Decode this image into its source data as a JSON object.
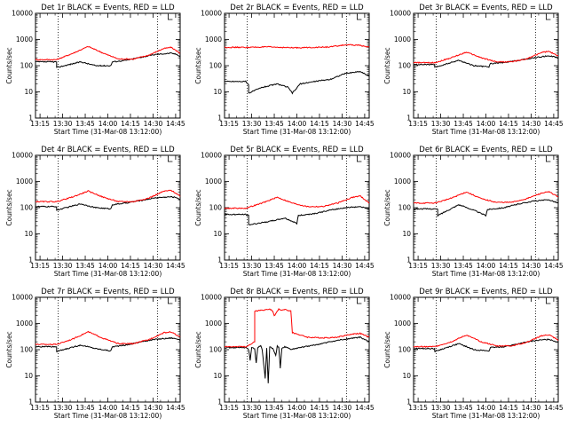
{
  "chart_data": [
    {
      "type": "line",
      "title": "Det 1r BLACK = Events, RED = LLD",
      "xlabel": "Start Time (31-Mar-08 13:12:00)",
      "ylabel": "Counts/sec",
      "x_ticks": [
        "13:15",
        "13:30",
        "13:45",
        "14:00",
        "14:15",
        "14:30",
        "14:45"
      ],
      "y_ticks": [
        "1",
        "10",
        "100",
        "1000",
        "10000"
      ],
      "xlim_minutes": [
        0,
        96
      ],
      "ylim": [
        1,
        10000
      ],
      "yscale": "log",
      "dotted_x_minutes": [
        15,
        81
      ],
      "series": [
        {
          "name": "Events",
          "color": "#000000",
          "x": [
            0,
            14,
            14,
            30,
            40,
            50,
            51,
            60,
            70,
            80,
            90,
            94,
            96
          ],
          "values": [
            140,
            140,
            85,
            140,
            100,
            100,
            140,
            160,
            210,
            270,
            300,
            270,
            220
          ]
        },
        {
          "name": "LLD",
          "color": "#ff0000",
          "x": [
            0,
            14,
            25,
            35,
            45,
            55,
            65,
            75,
            85,
            90,
            96
          ],
          "values": [
            170,
            170,
            300,
            540,
            300,
            180,
            180,
            250,
            450,
            500,
            300
          ]
        }
      ]
    },
    {
      "type": "line",
      "title": "Det 2r BLACK = Events, RED = LLD",
      "xlabel": "Start Time (31-Mar-08 13:12:00)",
      "ylabel": "Counts/sec",
      "x_ticks": [
        "13:15",
        "13:30",
        "13:45",
        "14:00",
        "14:15",
        "14:30",
        "14:45"
      ],
      "y_ticks": [
        "1",
        "10",
        "100",
        "1000",
        "10000"
      ],
      "xlim_minutes": [
        0,
        96
      ],
      "ylim": [
        1,
        10000
      ],
      "yscale": "log",
      "dotted_x_minutes": [
        15,
        81
      ],
      "series": [
        {
          "name": "Events",
          "color": "#000000",
          "x": [
            0,
            14,
            16,
            16,
            25,
            35,
            42,
            45,
            48,
            50,
            60,
            70,
            80,
            90,
            96
          ],
          "values": [
            25,
            25,
            18,
            9,
            15,
            20,
            15,
            9,
            14,
            20,
            25,
            30,
            50,
            60,
            40
          ]
        },
        {
          "name": "LLD",
          "color": "#ff0000",
          "x": [
            0,
            14,
            30,
            45,
            60,
            70,
            80,
            90,
            96
          ],
          "values": [
            500,
            500,
            520,
            480,
            500,
            520,
            620,
            600,
            500
          ]
        }
      ]
    },
    {
      "type": "line",
      "title": "Det 3r BLACK = Events, RED = LLD",
      "xlabel": "Start Time (31-Mar-08 13:12:00)",
      "ylabel": "Counts/sec",
      "x_ticks": [
        "13:15",
        "13:30",
        "13:45",
        "14:00",
        "14:15",
        "14:30",
        "14:45"
      ],
      "y_ticks": [
        "1",
        "10",
        "100",
        "1000",
        "10000"
      ],
      "xlim_minutes": [
        0,
        96
      ],
      "ylim": [
        1,
        10000
      ],
      "yscale": "log",
      "dotted_x_minutes": [
        15,
        81
      ],
      "series": [
        {
          "name": "Events",
          "color": "#000000",
          "x": [
            0,
            14,
            14,
            30,
            40,
            50,
            51,
            60,
            70,
            80,
            90,
            96
          ],
          "values": [
            110,
            110,
            85,
            160,
            100,
            90,
            120,
            130,
            160,
            200,
            240,
            200
          ]
        },
        {
          "name": "LLD",
          "color": "#ff0000",
          "x": [
            0,
            14,
            25,
            35,
            45,
            55,
            65,
            75,
            85,
            90,
            96
          ],
          "values": [
            130,
            130,
            200,
            330,
            200,
            140,
            140,
            180,
            320,
            350,
            230
          ]
        }
      ]
    },
    {
      "type": "line",
      "title": "Det 4r BLACK = Events, RED = LLD",
      "xlabel": "Start Time (31-Mar-08 13:12:00)",
      "ylabel": "Counts/sec",
      "x_ticks": [
        "13:15",
        "13:30",
        "13:45",
        "14:00",
        "14:15",
        "14:30",
        "14:45"
      ],
      "y_ticks": [
        "1",
        "10",
        "100",
        "1000",
        "10000"
      ],
      "xlim_minutes": [
        0,
        96
      ],
      "ylim": [
        1,
        10000
      ],
      "yscale": "log",
      "dotted_x_minutes": [
        15,
        81
      ],
      "series": [
        {
          "name": "Events",
          "color": "#000000",
          "x": [
            0,
            14,
            14,
            30,
            40,
            50,
            51,
            60,
            70,
            80,
            90,
            94,
            96
          ],
          "values": [
            110,
            110,
            80,
            140,
            100,
            90,
            130,
            150,
            190,
            240,
            260,
            240,
            200
          ]
        },
        {
          "name": "LLD",
          "color": "#ff0000",
          "x": [
            0,
            14,
            25,
            35,
            45,
            55,
            65,
            75,
            85,
            90,
            96
          ],
          "values": [
            170,
            170,
            260,
            430,
            250,
            170,
            170,
            230,
            420,
            460,
            280
          ]
        }
      ]
    },
    {
      "type": "line",
      "title": "Det 5r BLACK = Events, RED = LLD",
      "xlabel": "Start Time (31-Mar-08 13:12:00)",
      "ylabel": "Counts/sec",
      "x_ticks": [
        "13:15",
        "13:30",
        "13:45",
        "14:00",
        "14:15",
        "14:30",
        "14:45"
      ],
      "y_ticks": [
        "1",
        "10",
        "100",
        "1000",
        "10000"
      ],
      "xlim_minutes": [
        0,
        96
      ],
      "ylim": [
        1,
        10000
      ],
      "yscale": "log",
      "dotted_x_minutes": [
        15,
        81
      ],
      "series": [
        {
          "name": "Events",
          "color": "#000000",
          "x": [
            0,
            14,
            16,
            16,
            30,
            40,
            48,
            49,
            60,
            70,
            80,
            90,
            96
          ],
          "values": [
            55,
            55,
            50,
            22,
            30,
            40,
            25,
            50,
            60,
            80,
            100,
            110,
            90
          ]
        },
        {
          "name": "LLD",
          "color": "#ff0000",
          "x": [
            0,
            14,
            25,
            35,
            45,
            55,
            65,
            75,
            85,
            90,
            96
          ],
          "values": [
            95,
            95,
            150,
            250,
            150,
            110,
            110,
            150,
            250,
            280,
            150
          ]
        }
      ]
    },
    {
      "type": "line",
      "title": "Det 6r BLACK = Events, RED = LLD",
      "xlabel": "Start Time (31-Mar-08 13:12:00)",
      "ylabel": "Counts/sec",
      "x_ticks": [
        "13:15",
        "13:30",
        "13:45",
        "14:00",
        "14:15",
        "14:30",
        "14:45"
      ],
      "y_ticks": [
        "1",
        "10",
        "100",
        "1000",
        "10000"
      ],
      "xlim_minutes": [
        0,
        96
      ],
      "ylim": [
        1,
        10000
      ],
      "yscale": "log",
      "dotted_x_minutes": [
        15,
        81
      ],
      "series": [
        {
          "name": "Events",
          "color": "#000000",
          "x": [
            0,
            14,
            16,
            16,
            30,
            40,
            48,
            49,
            60,
            70,
            80,
            90,
            96
          ],
          "values": [
            90,
            90,
            85,
            50,
            130,
            80,
            50,
            85,
            100,
            140,
            180,
            200,
            150
          ]
        },
        {
          "name": "LLD",
          "color": "#ff0000",
          "x": [
            0,
            14,
            25,
            35,
            45,
            55,
            65,
            75,
            85,
            90,
            96
          ],
          "values": [
            150,
            150,
            230,
            400,
            220,
            160,
            160,
            220,
            360,
            400,
            260
          ]
        }
      ]
    },
    {
      "type": "line",
      "title": "Det 7r BLACK = Events, RED = LLD",
      "xlabel": "Start Time (31-Mar-08 13:12:00)",
      "ylabel": "Counts/sec",
      "x_ticks": [
        "13:15",
        "13:30",
        "13:45",
        "14:00",
        "14:15",
        "14:30",
        "14:45"
      ],
      "y_ticks": [
        "1",
        "10",
        "100",
        "1000",
        "10000"
      ],
      "xlim_minutes": [
        0,
        96
      ],
      "ylim": [
        1,
        10000
      ],
      "yscale": "log",
      "dotted_x_minutes": [
        15,
        81
      ],
      "series": [
        {
          "name": "Events",
          "color": "#000000",
          "x": [
            0,
            14,
            14,
            30,
            40,
            50,
            51,
            60,
            70,
            80,
            90,
            94,
            96
          ],
          "values": [
            130,
            130,
            85,
            150,
            110,
            90,
            130,
            150,
            200,
            250,
            280,
            260,
            220
          ]
        },
        {
          "name": "LLD",
          "color": "#ff0000",
          "x": [
            0,
            14,
            25,
            35,
            45,
            55,
            65,
            75,
            85,
            90,
            96
          ],
          "values": [
            160,
            160,
            260,
            480,
            270,
            170,
            170,
            240,
            440,
            480,
            300
          ]
        }
      ]
    },
    {
      "type": "line",
      "title": "Det 8r BLACK = Events, RED = LLD",
      "xlabel": "Start Time (31-Mar-08 13:12:00)",
      "ylabel": "Counts/sec",
      "x_ticks": [
        "13:15",
        "13:30",
        "13:45",
        "14:00",
        "14:15",
        "14:30",
        "14:45"
      ],
      "y_ticks": [
        "1",
        "10",
        "100",
        "1000",
        "10000"
      ],
      "xlim_minutes": [
        0,
        96
      ],
      "ylim": [
        1,
        10000
      ],
      "yscale": "log",
      "dotted_x_minutes": [
        15,
        81
      ],
      "series": [
        {
          "name": "Events",
          "color": "#000000",
          "x": [
            0,
            14,
            16,
            17,
            18,
            20,
            21,
            22,
            24,
            25,
            27,
            28,
            29,
            30,
            32,
            34,
            35,
            36,
            37,
            38,
            40,
            42,
            44,
            50,
            60,
            70,
            80,
            90,
            96
          ],
          "values": [
            120,
            120,
            100,
            40,
            120,
            110,
            30,
            120,
            140,
            100,
            8,
            120,
            5,
            130,
            110,
            60,
            140,
            120,
            20,
            110,
            130,
            120,
            100,
            120,
            150,
            200,
            250,
            300,
            200
          ]
        },
        {
          "name": "LLD",
          "color": "#ff0000",
          "x": [
            0,
            14,
            20,
            20,
            30,
            32,
            33,
            36,
            38,
            40,
            44,
            45,
            55,
            65,
            75,
            85,
            90,
            96
          ],
          "values": [
            130,
            130,
            200,
            3000,
            3500,
            3000,
            2000,
            3500,
            3200,
            3400,
            3000,
            450,
            300,
            280,
            300,
            400,
            420,
            300
          ]
        }
      ]
    },
    {
      "type": "line",
      "title": "Det 9r BLACK = Events, RED = LLD",
      "xlabel": "Start Time (31-Mar-08 13:12:00)",
      "ylabel": "Counts/sec",
      "x_ticks": [
        "13:15",
        "13:30",
        "13:45",
        "14:00",
        "14:15",
        "14:30",
        "14:45"
      ],
      "y_ticks": [
        "1",
        "10",
        "100",
        "1000",
        "10000"
      ],
      "xlim_minutes": [
        0,
        96
      ],
      "ylim": [
        1,
        10000
      ],
      "yscale": "log",
      "dotted_x_minutes": [
        15,
        81
      ],
      "series": [
        {
          "name": "Events",
          "color": "#000000",
          "x": [
            0,
            14,
            14,
            30,
            40,
            50,
            51,
            60,
            70,
            80,
            90,
            96
          ],
          "values": [
            110,
            110,
            85,
            170,
            100,
            90,
            120,
            130,
            170,
            220,
            250,
            190
          ]
        },
        {
          "name": "LLD",
          "color": "#ff0000",
          "x": [
            0,
            14,
            25,
            35,
            45,
            55,
            65,
            75,
            85,
            90,
            96
          ],
          "values": [
            130,
            130,
            200,
            360,
            200,
            140,
            140,
            190,
            340,
            370,
            230
          ]
        }
      ]
    }
  ]
}
